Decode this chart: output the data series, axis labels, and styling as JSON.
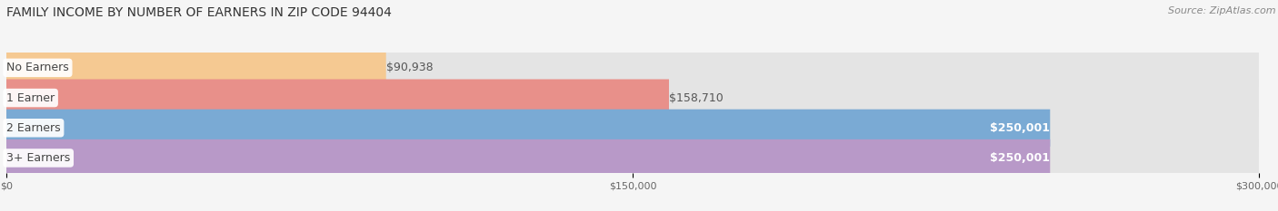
{
  "title": "FAMILY INCOME BY NUMBER OF EARNERS IN ZIP CODE 94404",
  "source": "Source: ZipAtlas.com",
  "categories": [
    "No Earners",
    "1 Earner",
    "2 Earners",
    "3+ Earners"
  ],
  "values": [
    90938,
    158710,
    250001,
    250001
  ],
  "bar_colors": [
    "#f5c992",
    "#e8908a",
    "#7aaad4",
    "#b899c8"
  ],
  "label_colors": [
    "#444444",
    "#444444",
    "#444444",
    "#444444"
  ],
  "value_label_colors": [
    "#555555",
    "#555555",
    "#ffffff",
    "#ffffff"
  ],
  "value_labels": [
    "$90,938",
    "$158,710",
    "$250,001",
    "$250,001"
  ],
  "xmax": 300000,
  "xticks": [
    0,
    150000,
    300000
  ],
  "xtick_labels": [
    "$0",
    "$150,000",
    "$300,000"
  ],
  "title_fontsize": 10,
  "source_fontsize": 8,
  "label_fontsize": 9,
  "value_fontsize": 9,
  "background_color": "#f5f5f5",
  "bar_bg_color": "#e4e4e4"
}
